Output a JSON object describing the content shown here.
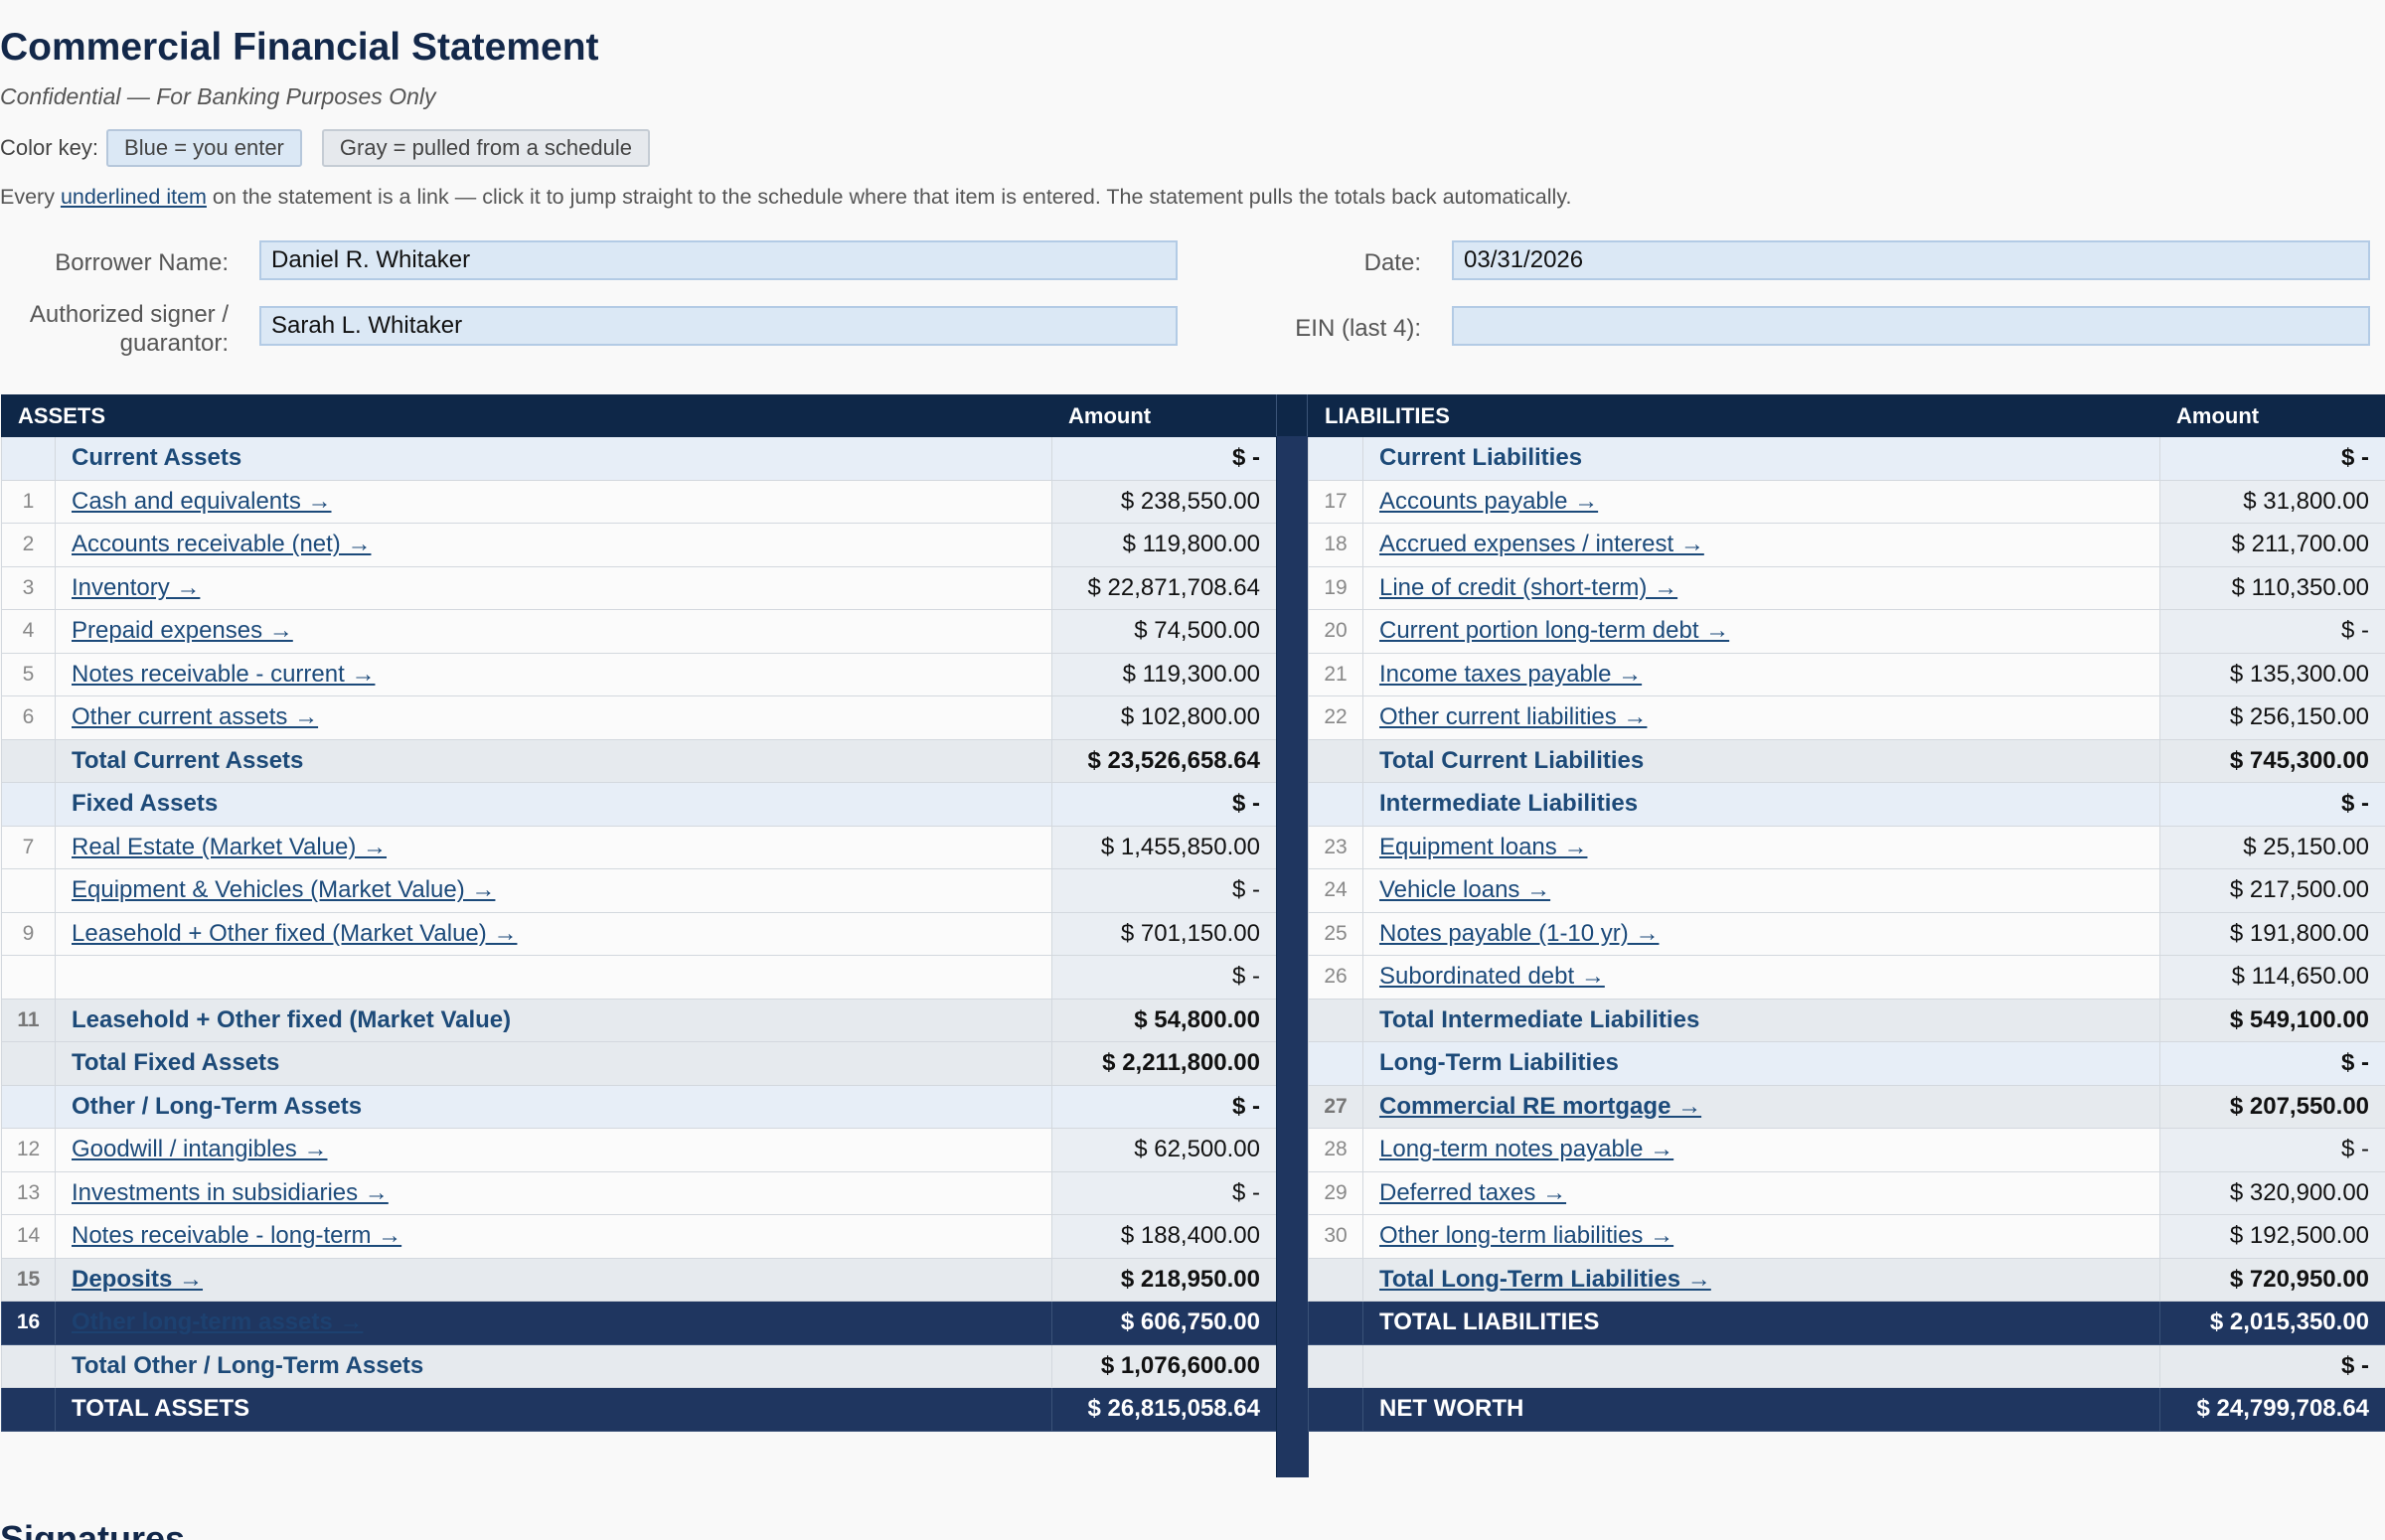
{
  "header": {
    "title": "Commercial Financial Statement",
    "subtitle": "Confidential — For Banking Purposes Only",
    "color_key_label": "Color key:",
    "chip_blue": "Blue = you enter",
    "chip_gray": "Gray = pulled from a schedule",
    "link_note_prefix": "Every ",
    "link_note_link": "underlined item",
    "link_note_suffix": " on the statement is a link — click it to jump straight to the schedule where that item is entered. The statement pulls the totals back automatically."
  },
  "form": {
    "borrower_label": "Borrower Name:",
    "borrower_value": "Daniel R. Whitaker",
    "date_label": "Date:",
    "date_value": "03/31/2026",
    "signer_label": "Authorized signer / guarantor:",
    "signer_value": "Sarah L. Whitaker",
    "ein_label": "EIN (last 4):",
    "ein_value": ""
  },
  "colors": {
    "header_navy": "#0e2748",
    "total_navy": "#1f3660",
    "input_blue": "#dbe8f5",
    "link_blue": "#1c4a7a"
  },
  "assets": {
    "heading": "ASSETS",
    "amount_heading": "Amount",
    "rows": [
      {
        "type": "section",
        "num": "",
        "label": "Current Assets",
        "amount": "$ -"
      },
      {
        "type": "item",
        "num": "1",
        "label": "Cash and equivalents →",
        "amount": "$ 238,550.00"
      },
      {
        "type": "item",
        "num": "2",
        "label": "Accounts receivable (net) →",
        "amount": "$ 119,800.00"
      },
      {
        "type": "item",
        "num": "3",
        "label": "Inventory →",
        "amount": "$ 22,871,708.64"
      },
      {
        "type": "item",
        "num": "4",
        "label": "Prepaid expenses →",
        "amount": "$ 74,500.00"
      },
      {
        "type": "item",
        "num": "5",
        "label": "Notes receivable - current →",
        "amount": "$ 119,300.00"
      },
      {
        "type": "item",
        "num": "6",
        "label": "Other current assets →",
        "amount": "$ 102,800.00"
      },
      {
        "type": "total",
        "num": "",
        "label": "Total Current Assets",
        "amount": "$ 23,526,658.64"
      },
      {
        "type": "section",
        "num": "",
        "label": "Fixed Assets",
        "amount": "$ -"
      },
      {
        "type": "item",
        "num": "7",
        "label": "Real Estate (Market Value) →",
        "amount": "$ 1,455,850.00"
      },
      {
        "type": "item",
        "num": "",
        "label": "Equipment & Vehicles (Market Value) →",
        "amount": "$ -"
      },
      {
        "type": "item",
        "num": "9",
        "label": "Leasehold + Other fixed (Market Value) →",
        "amount": "$ 701,150.00"
      },
      {
        "type": "item",
        "num": "",
        "label": "",
        "amount": "$ -"
      },
      {
        "type": "total",
        "num": "11",
        "label": "Leasehold + Other fixed (Market Value)",
        "amount": "$ 54,800.00"
      },
      {
        "type": "total",
        "num": "",
        "label": "Total Fixed Assets",
        "amount": "$ 2,211,800.00"
      },
      {
        "type": "section",
        "num": "",
        "label": "Other / Long-Term Assets",
        "amount": "$ -"
      },
      {
        "type": "item",
        "num": "12",
        "label": "Goodwill / intangibles →",
        "amount": "$ 62,500.00"
      },
      {
        "type": "item",
        "num": "13",
        "label": "Investments in subsidiaries →",
        "amount": "$ -"
      },
      {
        "type": "item",
        "num": "14",
        "label": "Notes receivable - long-term →",
        "amount": "$ 188,400.00"
      },
      {
        "type": "link-b",
        "num": "15",
        "label": "Deposits →",
        "amount": "$ 218,950.00"
      },
      {
        "type": "hl",
        "num": "16",
        "label": "Other long-term assets →",
        "amount": "$ 606,750.00"
      },
      {
        "type": "total",
        "num": "",
        "label": "Total Other / Long-Term Assets",
        "amount": "$ 1,076,600.00"
      },
      {
        "type": "grand",
        "num": "",
        "label": "TOTAL ASSETS",
        "amount": "$ 26,815,058.64"
      }
    ]
  },
  "liabilities": {
    "heading": "LIABILITIES",
    "amount_heading": "Amount",
    "rows": [
      {
        "type": "section",
        "num": "",
        "label": "Current Liabilities",
        "amount": "$ -"
      },
      {
        "type": "item",
        "num": "17",
        "label": "Accounts payable →",
        "amount": "$ 31,800.00"
      },
      {
        "type": "item",
        "num": "18",
        "label": "Accrued expenses / interest →",
        "amount": "$ 211,700.00"
      },
      {
        "type": "item",
        "num": "19",
        "label": "Line of credit (short-term) →",
        "amount": "$ 110,350.00"
      },
      {
        "type": "item",
        "num": "20",
        "label": "Current portion long-term debt →",
        "amount": "$ -"
      },
      {
        "type": "item",
        "num": "21",
        "label": "Income taxes payable →",
        "amount": "$ 135,300.00"
      },
      {
        "type": "item",
        "num": "22",
        "label": "Other current liabilities →",
        "amount": "$ 256,150.00"
      },
      {
        "type": "total",
        "num": "",
        "label": "Total Current Liabilities",
        "amount": "$ 745,300.00"
      },
      {
        "type": "section",
        "num": "",
        "label": "Intermediate Liabilities",
        "amount": "$ -"
      },
      {
        "type": "item",
        "num": "23",
        "label": "Equipment loans →",
        "amount": "$ 25,150.00"
      },
      {
        "type": "item",
        "num": "24",
        "label": "Vehicle loans →",
        "amount": "$ 217,500.00"
      },
      {
        "type": "item",
        "num": "25",
        "label": "Notes payable (1-10 yr) →",
        "amount": "$ 191,800.00"
      },
      {
        "type": "item",
        "num": "26",
        "label": "Subordinated debt →",
        "amount": "$ 114,650.00"
      },
      {
        "type": "total",
        "num": "",
        "label": "Total Intermediate Liabilities",
        "amount": "$ 549,100.00"
      },
      {
        "type": "section",
        "num": "",
        "label": "Long-Term Liabilities",
        "amount": "$ -"
      },
      {
        "type": "link-b",
        "num": "27",
        "label": "Commercial RE mortgage →",
        "amount": "$ 207,550.00"
      },
      {
        "type": "item",
        "num": "28",
        "label": "Long-term notes payable →",
        "amount": "$ -"
      },
      {
        "type": "item",
        "num": "29",
        "label": "Deferred taxes →",
        "amount": "$ 320,900.00"
      },
      {
        "type": "item",
        "num": "30",
        "label": "Other long-term liabilities →",
        "amount": "$ 192,500.00"
      },
      {
        "type": "link-b",
        "num": "",
        "label": "Total Long-Term Liabilities →",
        "amount": "$ 720,950.00"
      },
      {
        "type": "grand",
        "num": "",
        "label": "TOTAL LIABILITIES",
        "amount": "$ 2,015,350.00"
      },
      {
        "type": "total",
        "num": "",
        "label": "",
        "amount": "$ -"
      },
      {
        "type": "grand",
        "num": "",
        "label": "NET WORTH",
        "amount": "$ 24,799,708.64"
      }
    ]
  },
  "signatures": {
    "heading": "Signatures"
  }
}
